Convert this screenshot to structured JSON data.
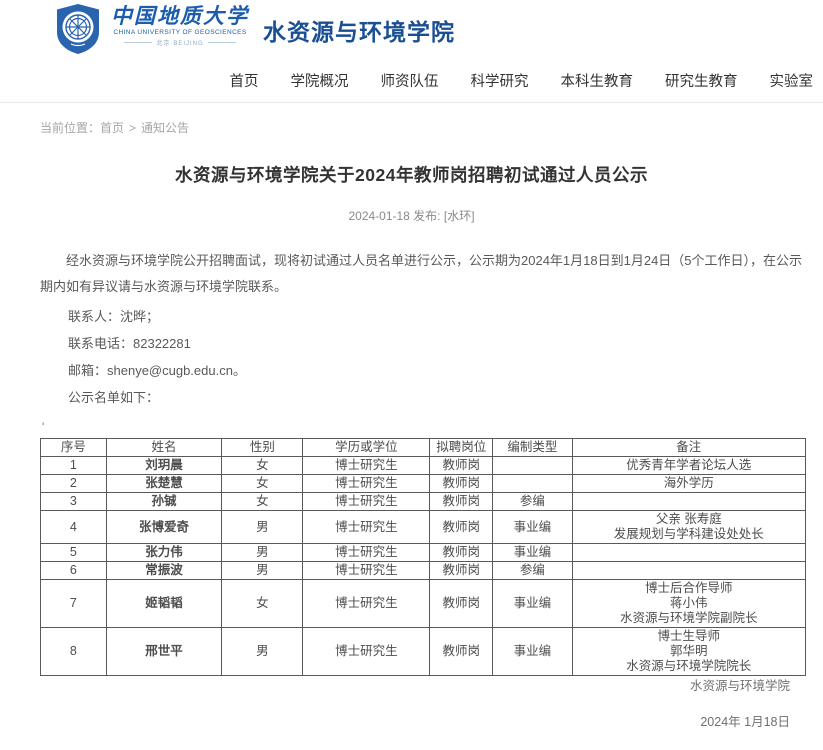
{
  "header": {
    "university_name_cn": "中国地质大学",
    "university_name_en": "CHINA UNIVERSITY OF GEOSCIENCES",
    "university_location": "北京·BEIJING",
    "college_name": "水资源与环境学院"
  },
  "nav": {
    "items": [
      "首页",
      "学院概况",
      "师资队伍",
      "科学研究",
      "本科生教育",
      "研究生教育",
      "实验室"
    ]
  },
  "breadcrumb": {
    "prefix": "当前位置：",
    "home": "首页",
    "separator": ">",
    "current": "通知公告"
  },
  "article": {
    "title": "水资源与环境学院关于2024年教师岗招聘初试通过人员公示",
    "meta": "2024-01-18 发布: [水环]",
    "paragraph": "经水资源与环境学院公开招聘面试，现将初试通过人员名单进行公示，公示期为2024年1月18日到1月24日（5个工作日），在公示期内如有异议请与水资源与环境学院联系。",
    "contact_person": "联系人：沈晔；",
    "contact_phone": "联系电话：82322281",
    "contact_email": "邮箱：shenye@cugb.edu.cn。",
    "list_intro": "公示名单如下：",
    "stray_mark": "'"
  },
  "table": {
    "headers": [
      "序号",
      "姓名",
      "性别",
      "学历或学位",
      "拟聘岗位",
      "编制类型",
      "备注"
    ],
    "col_widths_pct": [
      8.6,
      15.1,
      10.6,
      16.6,
      8.2,
      10.4,
      30.5
    ],
    "rows": [
      [
        "1",
        "刘玥晨",
        "女",
        "博士研究生",
        "教师岗",
        "",
        "优秀青年学者论坛人选"
      ],
      [
        "2",
        "张楚慧",
        "女",
        "博士研究生",
        "教师岗",
        "",
        "海外学历"
      ],
      [
        "3",
        "孙铖",
        "女",
        "博士研究生",
        "教师岗",
        "参编",
        ""
      ],
      [
        "4",
        "张博爱奇",
        "男",
        "博士研究生",
        "教师岗",
        "事业编",
        "父亲 张寿庭\n发展规划与学科建设处处长"
      ],
      [
        "5",
        "张力伟",
        "男",
        "博士研究生",
        "教师岗",
        "事业编",
        ""
      ],
      [
        "6",
        "常振波",
        "男",
        "博士研究生",
        "教师岗",
        "参编",
        ""
      ],
      [
        "7",
        "姬韬韬",
        "女",
        "博士研究生",
        "教师岗",
        "事业编",
        "博士后合作导师\n蒋小伟\n水资源与环境学院副院长"
      ],
      [
        "8",
        "邢世平",
        "男",
        "博士研究生",
        "教师岗",
        "事业编",
        "博士生导师\n郭华明\n水资源与环境学院院长"
      ]
    ]
  },
  "footer": {
    "signature": "水资源与环境学院",
    "date": "2024年 1月18日"
  },
  "colors": {
    "brand_blue": "#1d5dad",
    "college_blue": "#1b4f94",
    "nav_text": "#333333",
    "breadcrumb_gray": "#a6a6a6",
    "body_gray": "#595959",
    "table_border": "#595959"
  }
}
